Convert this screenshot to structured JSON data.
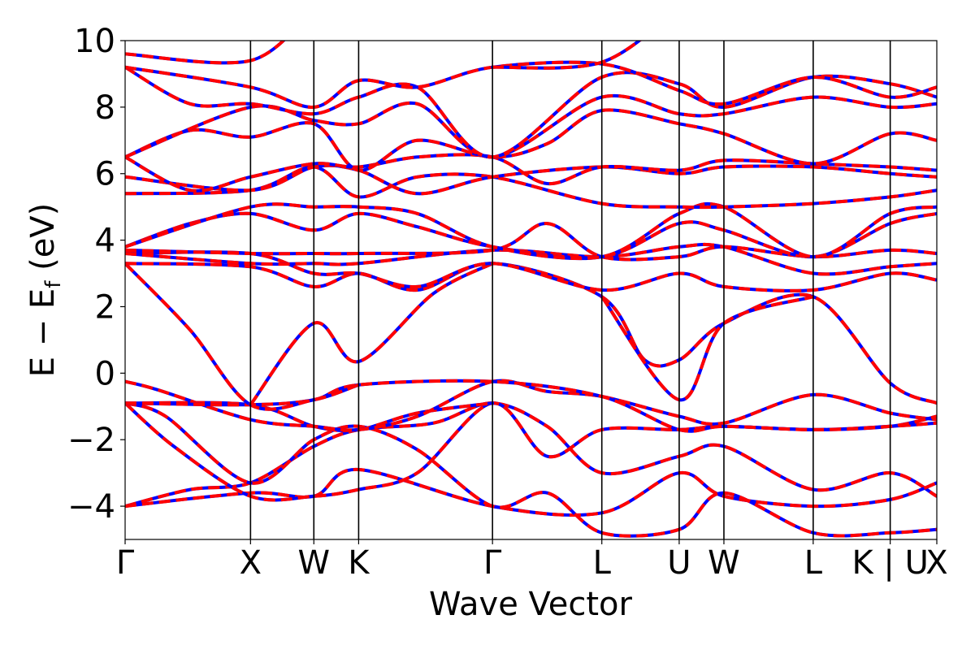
{
  "chart_data": {
    "type": "line",
    "title": "",
    "xlabel": "Wave Vector",
    "ylabel": {
      "main": "E − E",
      "sub": "f",
      "unit": " (eV)"
    },
    "xlim": [
      0,
      1
    ],
    "ylim": [
      -5,
      10
    ],
    "y_ticks": [
      -4,
      -2,
      0,
      2,
      4,
      6,
      8,
      10
    ],
    "y_tick_labels": [
      "−4",
      "−2",
      "0",
      "2",
      "4",
      "6",
      "8",
      "10"
    ],
    "kpoints": [
      {
        "label": "Γ",
        "x": 0.0
      },
      {
        "label": "X",
        "x": 0.1545
      },
      {
        "label": "W",
        "x": 0.2325
      },
      {
        "label": "K",
        "x": 0.2877
      },
      {
        "label": "Γ",
        "x": 0.4526
      },
      {
        "label": "L",
        "x": 0.5873
      },
      {
        "label": "U",
        "x": 0.6826
      },
      {
        "label": "W",
        "x": 0.7377
      },
      {
        "label": "L",
        "x": 0.8477
      },
      {
        "label": "K | U",
        "x": 0.9426
      },
      {
        "label": "X",
        "x": 1.0
      }
    ],
    "grid": false,
    "legend": "none",
    "series_style": [
      {
        "color": "#0000ff",
        "dash": "none"
      },
      {
        "color": "#ff0000",
        "dash": "dashed"
      }
    ],
    "series": [
      {
        "values": [
          [
            0,
            -4.0
          ],
          [
            0.08,
            -3.5
          ],
          [
            0.1545,
            -3.3
          ],
          [
            0.2325,
            -2.2
          ],
          [
            0.2877,
            -1.7
          ],
          [
            0.38,
            -1.5
          ],
          [
            0.4526,
            -0.9
          ],
          [
            0.52,
            -1.6
          ],
          [
            0.5873,
            -3.0
          ],
          [
            0.6826,
            -2.5
          ],
          [
            0.7377,
            -2.2
          ],
          [
            0.8477,
            -3.5
          ],
          [
            0.9426,
            -3.0
          ],
          [
            1.0,
            -3.7
          ]
        ]
      },
      {
        "values": [
          [
            0,
            -4.0
          ],
          [
            0.1545,
            -3.6
          ],
          [
            0.2325,
            -3.7
          ],
          [
            0.2877,
            -2.9
          ],
          [
            0.4526,
            -4.0
          ],
          [
            0.5873,
            -4.2
          ],
          [
            0.6826,
            -3.0
          ],
          [
            0.7377,
            -3.7
          ],
          [
            0.8477,
            -4.0
          ],
          [
            0.9426,
            -3.8
          ],
          [
            1.0,
            -3.3
          ]
        ]
      },
      {
        "values": [
          [
            0,
            -0.9
          ],
          [
            0.05,
            -1.3
          ],
          [
            0.1545,
            -3.3
          ],
          [
            0.2325,
            -2.0
          ],
          [
            0.2877,
            -1.6
          ],
          [
            0.36,
            -2.3
          ],
          [
            0.4526,
            -4.0
          ],
          [
            0.52,
            -3.6
          ],
          [
            0.5873,
            -4.8
          ],
          [
            0.6826,
            -4.7
          ],
          [
            0.7377,
            -3.6
          ],
          [
            0.8477,
            -4.8
          ],
          [
            0.9426,
            -4.8
          ],
          [
            1.0,
            -4.7
          ]
        ]
      },
      {
        "values": [
          [
            0,
            -0.9
          ],
          [
            0.06,
            -2.2
          ],
          [
            0.1545,
            -3.7
          ],
          [
            0.2325,
            -3.7
          ],
          [
            0.2877,
            -3.5
          ],
          [
            0.36,
            -3.0
          ],
          [
            0.4526,
            -0.9
          ],
          [
            0.52,
            -2.5
          ],
          [
            0.5873,
            -1.7
          ],
          [
            0.6826,
            -1.7
          ],
          [
            0.7377,
            -1.6
          ],
          [
            0.8477,
            -1.7
          ],
          [
            0.9426,
            -1.6
          ],
          [
            1.0,
            -1.5
          ]
        ]
      },
      {
        "values": [
          [
            0,
            -0.9
          ],
          [
            0.1545,
            -0.95
          ],
          [
            0.2325,
            -1.6
          ],
          [
            0.2877,
            -1.7
          ],
          [
            0.36,
            -1.2
          ],
          [
            0.4526,
            -0.9
          ]
        ]
      },
      {
        "values": [
          [
            0,
            -0.25
          ],
          [
            0.04,
            -0.5
          ],
          [
            0.1545,
            -1.4
          ],
          [
            0.2325,
            -1.6
          ],
          [
            0.2877,
            -1.7
          ],
          [
            0.36,
            -1.3
          ],
          [
            0.4526,
            -0.25
          ],
          [
            0.52,
            -0.55
          ],
          [
            0.5873,
            -0.7
          ],
          [
            0.6826,
            -1.3
          ],
          [
            0.7377,
            -1.5
          ],
          [
            0.8477,
            -0.65
          ],
          [
            0.9426,
            -1.2
          ],
          [
            1.0,
            -1.4
          ]
        ]
      },
      {
        "values": [
          [
            0,
            -0.9
          ],
          [
            0.1545,
            -0.95
          ],
          [
            0.2325,
            -0.8
          ],
          [
            0.2877,
            -0.35
          ],
          [
            0.4526,
            -0.25
          ],
          [
            0.5873,
            -0.7
          ],
          [
            0.6826,
            -1.7
          ],
          [
            0.7377,
            -1.6
          ],
          [
            0.8477,
            -1.7
          ],
          [
            0.9426,
            -1.6
          ],
          [
            1.0,
            -1.3
          ]
        ]
      },
      {
        "values": [
          [
            0,
            3.3
          ],
          [
            0.08,
            1.3
          ],
          [
            0.1545,
            -0.95
          ],
          [
            0.2325,
            -0.8
          ],
          [
            0.2877,
            -0.35
          ]
        ]
      },
      {
        "values": [
          [
            0.1545,
            -0.95
          ],
          [
            0.2325,
            1.5
          ],
          [
            0.2877,
            0.35
          ],
          [
            0.38,
            2.4
          ],
          [
            0.4526,
            3.3
          ]
        ]
      },
      {
        "values": [
          [
            0,
            3.3
          ],
          [
            0.1545,
            3.2
          ],
          [
            0.2325,
            2.6
          ],
          [
            0.2877,
            3.0
          ],
          [
            0.36,
            2.5
          ],
          [
            0.4526,
            3.3
          ],
          [
            0.5873,
            2.3
          ],
          [
            0.64,
            0.4
          ],
          [
            0.6826,
            0.4
          ],
          [
            0.7377,
            1.5
          ],
          [
            0.8477,
            2.3
          ],
          [
            0.9426,
            -0.3
          ],
          [
            1.0,
            -0.9
          ]
        ]
      },
      {
        "values": [
          [
            0.5873,
            2.3
          ],
          [
            0.6826,
            -0.8
          ],
          [
            0.7377,
            1.5
          ],
          [
            0.8477,
            2.3
          ]
        ]
      },
      {
        "values": [
          [
            0,
            3.6
          ],
          [
            0.1545,
            3.6
          ],
          [
            0.2325,
            3.0
          ],
          [
            0.2877,
            3.0
          ],
          [
            0.36,
            2.6
          ],
          [
            0.4526,
            3.3
          ],
          [
            0.5873,
            2.5
          ],
          [
            0.6826,
            3.0
          ],
          [
            0.7377,
            2.6
          ],
          [
            0.8477,
            2.5
          ],
          [
            0.9426,
            3.0
          ],
          [
            1.0,
            2.8
          ]
        ]
      },
      {
        "values": [
          [
            0,
            3.6
          ],
          [
            0.1545,
            3.3
          ],
          [
            0.2325,
            3.3
          ],
          [
            0.2877,
            3.3
          ],
          [
            0.4526,
            3.7
          ],
          [
            0.5873,
            3.5
          ],
          [
            0.6826,
            3.8
          ],
          [
            0.7377,
            3.8
          ],
          [
            0.8477,
            3.0
          ],
          [
            0.9426,
            3.2
          ],
          [
            1.0,
            3.3
          ]
        ]
      },
      {
        "values": [
          [
            0,
            3.7
          ],
          [
            0.1545,
            3.6
          ],
          [
            0.2325,
            3.6
          ],
          [
            0.2877,
            3.6
          ],
          [
            0.4526,
            3.7
          ],
          [
            0.52,
            4.5
          ],
          [
            0.5873,
            3.5
          ],
          [
            0.6826,
            3.5
          ],
          [
            0.7377,
            3.8
          ],
          [
            0.8477,
            3.5
          ],
          [
            0.9426,
            3.7
          ],
          [
            1.0,
            3.6
          ]
        ]
      },
      {
        "values": [
          [
            0,
            3.8
          ],
          [
            0.08,
            4.5
          ],
          [
            0.1545,
            4.8
          ],
          [
            0.2325,
            4.3
          ],
          [
            0.2877,
            4.8
          ],
          [
            0.36,
            4.4
          ],
          [
            0.4526,
            3.8
          ],
          [
            0.5873,
            3.5
          ],
          [
            0.6826,
            4.5
          ],
          [
            0.7377,
            4.3
          ],
          [
            0.8477,
            3.5
          ],
          [
            0.9426,
            4.5
          ],
          [
            1.0,
            4.8
          ]
        ]
      },
      {
        "values": [
          [
            0,
            3.8
          ],
          [
            0.1545,
            5.0
          ],
          [
            0.2325,
            5.0
          ],
          [
            0.2877,
            5.0
          ],
          [
            0.36,
            4.8
          ],
          [
            0.4526,
            3.8
          ],
          [
            0.5873,
            3.5
          ],
          [
            0.6826,
            4.8
          ],
          [
            0.7377,
            5.0
          ],
          [
            0.8477,
            3.5
          ],
          [
            0.9426,
            4.8
          ],
          [
            1.0,
            5.0
          ]
        ]
      },
      {
        "values": [
          [
            0,
            5.4
          ],
          [
            0.1545,
            5.5
          ],
          [
            0.2325,
            6.2
          ],
          [
            0.2877,
            5.3
          ],
          [
            0.36,
            5.9
          ],
          [
            0.4526,
            5.9
          ],
          [
            0.5873,
            5.1
          ],
          [
            0.6826,
            5.0
          ],
          [
            0.7377,
            5.0
          ],
          [
            0.8477,
            5.1
          ],
          [
            0.9426,
            5.3
          ],
          [
            1.0,
            5.5
          ]
        ]
      },
      {
        "values": [
          [
            0,
            5.9
          ],
          [
            0.1545,
            5.5
          ],
          [
            0.2325,
            6.2
          ],
          [
            0.2877,
            6.1
          ],
          [
            0.36,
            5.4
          ],
          [
            0.4526,
            5.9
          ],
          [
            0.5873,
            6.2
          ],
          [
            0.6826,
            6.0
          ],
          [
            0.7377,
            6.2
          ],
          [
            0.8477,
            6.2
          ],
          [
            0.9426,
            6.0
          ],
          [
            1.0,
            5.9
          ]
        ]
      },
      {
        "values": [
          [
            0,
            6.5
          ],
          [
            0.08,
            5.5
          ],
          [
            0.1545,
            5.9
          ],
          [
            0.2325,
            6.3
          ],
          [
            0.2877,
            6.2
          ],
          [
            0.36,
            6.5
          ],
          [
            0.4526,
            6.5
          ],
          [
            0.52,
            5.7
          ],
          [
            0.5873,
            6.2
          ],
          [
            0.6826,
            6.1
          ],
          [
            0.7377,
            6.4
          ],
          [
            0.8477,
            6.3
          ],
          [
            0.9426,
            6.2
          ],
          [
            1.0,
            6.1
          ]
        ]
      },
      {
        "values": [
          [
            0,
            6.5
          ],
          [
            0.08,
            7.3
          ],
          [
            0.1545,
            7.1
          ],
          [
            0.2325,
            7.5
          ],
          [
            0.2877,
            6.1
          ],
          [
            0.36,
            7.0
          ],
          [
            0.4526,
            6.5
          ],
          [
            0.52,
            6.9
          ],
          [
            0.5873,
            7.9
          ],
          [
            0.6826,
            7.5
          ],
          [
            0.7377,
            7.2
          ],
          [
            0.8477,
            6.3
          ],
          [
            0.9426,
            7.2
          ],
          [
            1.0,
            7.0
          ]
        ]
      },
      {
        "values": [
          [
            0,
            6.5
          ],
          [
            0.1545,
            8.0
          ],
          [
            0.2325,
            7.6
          ],
          [
            0.2877,
            7.5
          ],
          [
            0.36,
            8.1
          ],
          [
            0.4526,
            6.5
          ],
          [
            0.5873,
            8.3
          ],
          [
            0.6826,
            7.8
          ],
          [
            0.7377,
            7.8
          ],
          [
            0.8477,
            8.3
          ],
          [
            0.9426,
            8.0
          ],
          [
            1.0,
            8.1
          ]
        ]
      },
      {
        "values": [
          [
            0,
            9.2
          ],
          [
            0.08,
            8.1
          ],
          [
            0.1545,
            8.1
          ],
          [
            0.2325,
            7.8
          ],
          [
            0.2877,
            8.3
          ],
          [
            0.36,
            8.6
          ],
          [
            0.4526,
            6.5
          ],
          [
            0.5873,
            8.9
          ],
          [
            0.6826,
            8.7
          ],
          [
            0.7377,
            8.0
          ],
          [
            0.8477,
            8.9
          ],
          [
            0.9426,
            8.7
          ],
          [
            1.0,
            8.3
          ]
        ]
      },
      {
        "values": [
          [
            0,
            9.2
          ],
          [
            0.1545,
            8.6
          ],
          [
            0.2325,
            8.0
          ],
          [
            0.2877,
            8.8
          ],
          [
            0.36,
            8.6
          ],
          [
            0.4526,
            9.2
          ],
          [
            0.5873,
            9.3
          ],
          [
            0.6826,
            8.5
          ],
          [
            0.7377,
            8.1
          ],
          [
            0.8477,
            8.9
          ],
          [
            0.9426,
            8.3
          ],
          [
            1.0,
            8.6
          ]
        ]
      },
      {
        "values": [
          [
            0,
            9.6
          ],
          [
            0.1545,
            9.4
          ],
          [
            0.2325,
            11.0
          ]
        ]
      },
      {
        "values": [
          [
            0.4526,
            9.2
          ],
          [
            0.5873,
            9.35
          ],
          [
            0.6826,
            11.0
          ]
        ]
      }
    ]
  }
}
